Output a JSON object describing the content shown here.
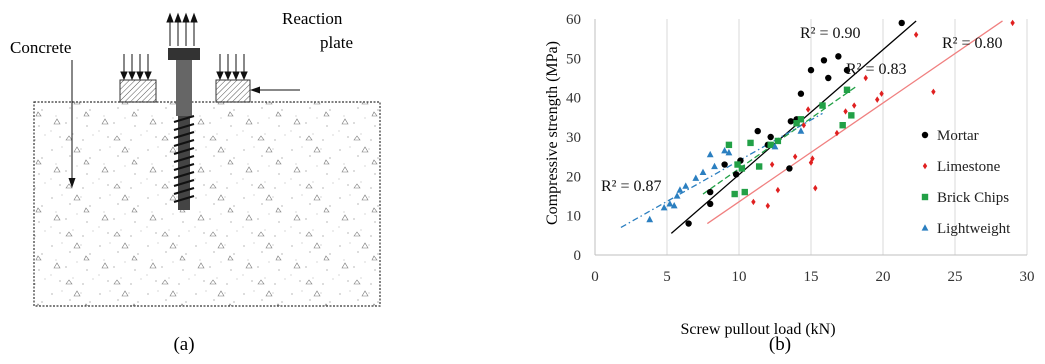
{
  "schematic": {
    "labels": {
      "concrete": "Concrete",
      "reaction_plate_line1": "Reaction",
      "reaction_plate_line2": "plate"
    },
    "caption": "(a)"
  },
  "chart_panel": {
    "caption": "(b)"
  },
  "chart_data": {
    "type": "scatter",
    "title": "",
    "xlabel": "Screw pullout load (kN)",
    "ylabel": "Compressive strength (MPa)",
    "xlim": [
      0,
      30
    ],
    "ylim": [
      0,
      60
    ],
    "xticks": [
      0,
      5,
      10,
      15,
      20,
      25,
      30
    ],
    "yticks": [
      0,
      10,
      20,
      30,
      40,
      50,
      60
    ],
    "grid": "vertical",
    "legend_position": "right",
    "series": [
      {
        "name": "Mortar",
        "marker": "circle",
        "color": "#000000",
        "points": [
          [
            6.5,
            8
          ],
          [
            8,
            13
          ],
          [
            8,
            16
          ],
          [
            9,
            23
          ],
          [
            9.8,
            20.5
          ],
          [
            10.1,
            24
          ],
          [
            11.3,
            31.5
          ],
          [
            12,
            28
          ],
          [
            12.2,
            30
          ],
          [
            13.5,
            22
          ],
          [
            13.6,
            34
          ],
          [
            14,
            34.5
          ],
          [
            14.3,
            41
          ],
          [
            15,
            47
          ],
          [
            15.9,
            49.5
          ],
          [
            16.2,
            45
          ],
          [
            16.9,
            50.5
          ],
          [
            17.5,
            47
          ],
          [
            21.3,
            59
          ]
        ],
        "trend": {
          "x": [
            5.3,
            22.3
          ],
          "y": [
            5.5,
            59.5
          ],
          "style": "solid",
          "color": "#000000"
        },
        "r2": "R² = 0.90"
      },
      {
        "name": "Limestone",
        "marker": "diamond",
        "color": "#e02020",
        "points": [
          [
            11,
            13.5
          ],
          [
            12,
            12.5
          ],
          [
            12.3,
            23
          ],
          [
            12.7,
            16.5
          ],
          [
            13.9,
            25
          ],
          [
            14.5,
            33
          ],
          [
            14.8,
            37
          ],
          [
            15,
            23.5
          ],
          [
            15.1,
            24.5
          ],
          [
            15.3,
            17
          ],
          [
            16.8,
            31
          ],
          [
            17.4,
            36.5
          ],
          [
            18,
            38
          ],
          [
            18.8,
            45
          ],
          [
            19.6,
            39.5
          ],
          [
            19.9,
            41
          ],
          [
            22.3,
            56
          ],
          [
            23.5,
            41.5
          ],
          [
            29,
            59
          ]
        ],
        "trend": {
          "x": [
            7.8,
            28.3
          ],
          "y": [
            8,
            59.5
          ],
          "style": "solid",
          "color": "#f08080"
        },
        "r2": "R² = 0.80"
      },
      {
        "name": "Brick Chips",
        "marker": "square",
        "color": "#22a046",
        "points": [
          [
            9.3,
            28
          ],
          [
            9.7,
            15.5
          ],
          [
            9.9,
            23
          ],
          [
            10.2,
            22
          ],
          [
            10.4,
            16
          ],
          [
            10.8,
            28.5
          ],
          [
            11.4,
            22.5
          ],
          [
            12.2,
            28
          ],
          [
            12.7,
            29
          ],
          [
            14,
            33.5
          ],
          [
            14.3,
            34.5
          ],
          [
            15.8,
            38
          ],
          [
            17.2,
            33
          ],
          [
            17.5,
            42
          ],
          [
            17.8,
            35.5
          ]
        ],
        "trend": {
          "x": [
            7.5,
            18.2
          ],
          "y": [
            15.5,
            43
          ],
          "style": "dashed",
          "color": "#22a046"
        },
        "r2": "R² = 0.83"
      },
      {
        "name": "Lightweight",
        "marker": "triangle",
        "color": "#2b7fc0",
        "points": [
          [
            3.8,
            9
          ],
          [
            4.8,
            12
          ],
          [
            5.2,
            13
          ],
          [
            5.5,
            12.5
          ],
          [
            5.7,
            15
          ],
          [
            5.9,
            16.5
          ],
          [
            6.3,
            17.5
          ],
          [
            7,
            19.5
          ],
          [
            7.5,
            21
          ],
          [
            8,
            25.5
          ],
          [
            8.3,
            22.5
          ],
          [
            9,
            26.5
          ],
          [
            9.3,
            26
          ],
          [
            12.5,
            27.5
          ],
          [
            14.3,
            31.5
          ]
        ],
        "trend": {
          "x": [
            1.8,
            15.8
          ],
          "y": [
            7,
            36
          ],
          "style": "dashdot",
          "color": "#2b7fc0"
        },
        "r2": "R² = 0.87"
      }
    ]
  }
}
